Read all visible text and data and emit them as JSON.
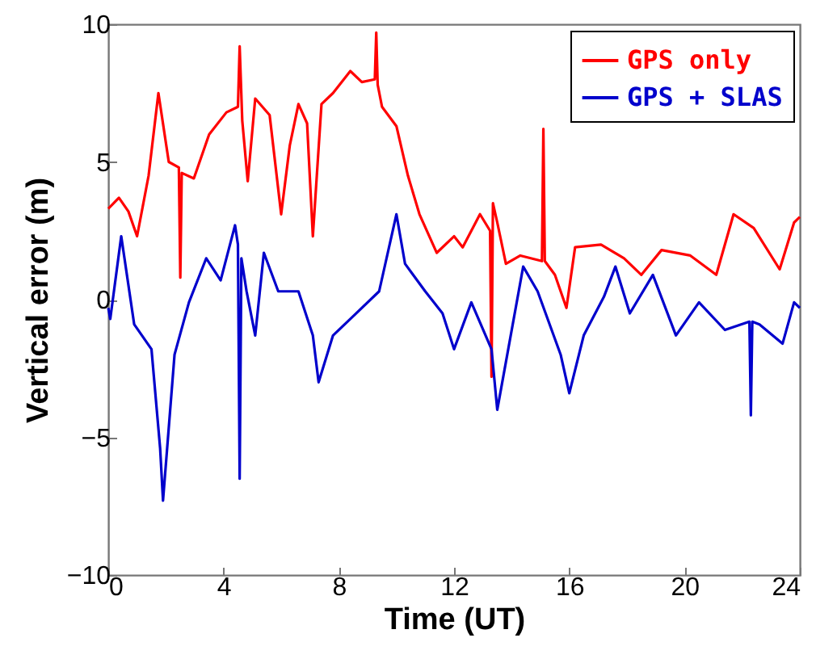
{
  "chart_data": {
    "type": "line",
    "xlabel": "Time (UT)",
    "ylabel": "Vertical error (m)",
    "xlim": [
      0,
      24
    ],
    "xticks": [
      0,
      4,
      8,
      12,
      16,
      20,
      24
    ],
    "ylim": [
      -10,
      10
    ],
    "yticks": [
      -10,
      -5,
      0,
      5,
      10
    ],
    "grid": false,
    "legend": "top right",
    "line_style": "solid",
    "marker": "none",
    "series": [
      {
        "name": "GPS only",
        "color": "#ff0000",
        "x": [
          0,
          0.37,
          0.7,
          1.0,
          1.4,
          1.74,
          2.1,
          2.45,
          2.5,
          2.55,
          2.97,
          3.5,
          4.1,
          4.5,
          4.56,
          4.65,
          4.84,
          5.1,
          5.6,
          6.0,
          6.3,
          6.6,
          6.9,
          7.1,
          7.4,
          7.8,
          8.4,
          8.8,
          9.25,
          9.3,
          9.35,
          9.5,
          10.0,
          10.4,
          10.8,
          11.4,
          12.0,
          12.3,
          12.9,
          13.25,
          13.3,
          13.35,
          13.5,
          13.8,
          14.3,
          15.05,
          15.1,
          15.15,
          15.5,
          15.9,
          16.2,
          17.1,
          17.9,
          18.5,
          19.2,
          20.2,
          21.1,
          21.7,
          22.4,
          23.3,
          23.8,
          24
        ],
        "values": [
          3.3,
          3.7,
          3.2,
          2.3,
          4.5,
          7.5,
          5.0,
          4.8,
          0.8,
          4.6,
          4.4,
          6.0,
          6.8,
          7.0,
          9.2,
          6.5,
          4.3,
          7.3,
          6.7,
          3.1,
          5.6,
          7.1,
          6.4,
          2.3,
          7.1,
          7.5,
          8.3,
          7.9,
          8.0,
          9.7,
          7.8,
          7.0,
          6.3,
          4.5,
          3.1,
          1.7,
          2.3,
          1.9,
          3.1,
          2.5,
          -2.8,
          3.5,
          2.8,
          1.3,
          1.6,
          1.4,
          6.2,
          1.4,
          0.9,
          -0.3,
          1.9,
          2.0,
          1.5,
          0.9,
          1.8,
          1.6,
          0.9,
          3.1,
          2.6,
          1.1,
          2.8,
          3.0
        ]
      },
      {
        "name": "GPS + SLAS",
        "color": "#0000cc",
        "x": [
          0,
          0.07,
          0.45,
          0.9,
          1.5,
          1.8,
          1.9,
          2.3,
          2.8,
          3.4,
          3.9,
          4.4,
          4.5,
          4.56,
          4.62,
          4.8,
          5.1,
          5.4,
          5.9,
          6.6,
          7.1,
          7.3,
          7.8,
          8.6,
          9.4,
          10.0,
          10.3,
          11.0,
          11.6,
          12.0,
          12.6,
          13.3,
          13.5,
          14.4,
          14.9,
          15.7,
          16.0,
          16.5,
          17.2,
          17.6,
          18.1,
          18.9,
          19.7,
          20.5,
          21.4,
          22.25,
          22.3,
          22.35,
          22.6,
          23.4,
          23.8,
          24
        ],
        "values": [
          -0.3,
          -0.7,
          2.3,
          -0.9,
          -1.8,
          -5.4,
          -7.3,
          -2.0,
          -0.1,
          1.5,
          0.7,
          2.7,
          2.0,
          -6.5,
          1.5,
          0.3,
          -1.3,
          1.7,
          0.3,
          0.3,
          -1.3,
          -3.0,
          -1.3,
          -0.5,
          0.3,
          3.1,
          1.3,
          0.3,
          -0.5,
          -1.8,
          -0.1,
          -1.8,
          -4.0,
          1.2,
          0.3,
          -2.0,
          -3.4,
          -1.3,
          0.1,
          1.2,
          -0.5,
          0.9,
          -1.3,
          -0.1,
          -1.1,
          -0.8,
          -4.2,
          -0.8,
          -0.9,
          -1.6,
          -0.1,
          -0.3
        ]
      }
    ]
  }
}
